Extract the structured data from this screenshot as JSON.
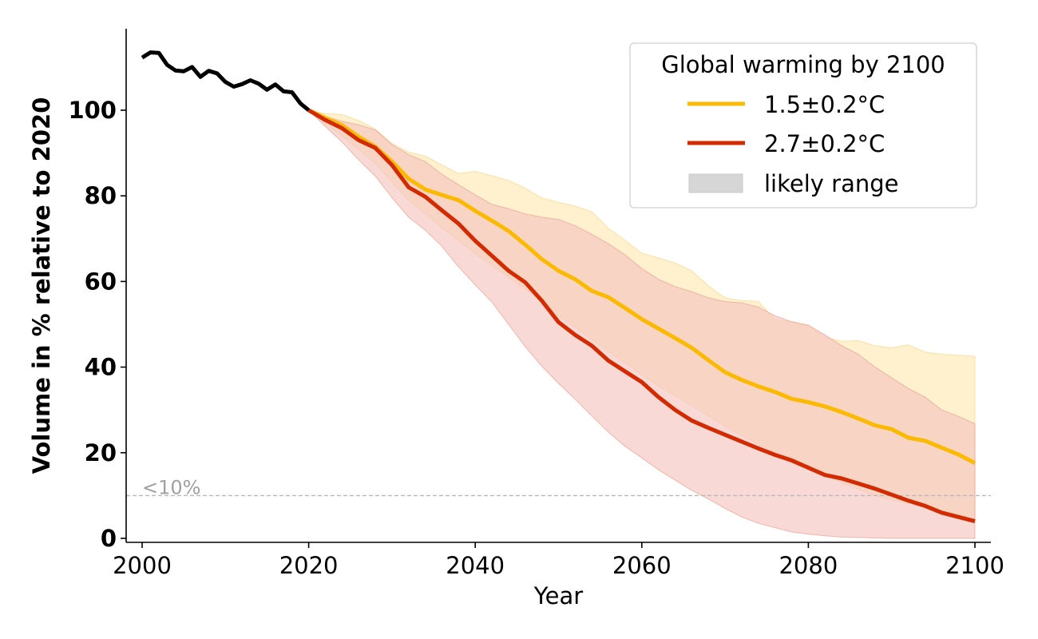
{
  "chart_data": {
    "type": "line",
    "title": "",
    "xlabel": "Year",
    "ylabel": "Volume in % relative to 2020",
    "xlim": [
      1998.5,
      2102
    ],
    "ylim": [
      -1,
      119
    ],
    "xticks": [
      2000,
      2020,
      2040,
      2060,
      2080,
      2100
    ],
    "yticks": [
      0,
      20,
      40,
      60,
      80,
      100
    ],
    "grid": false,
    "legend": {
      "title": "Global warming by 2100",
      "placement": "top-right",
      "entries": [
        {
          "label": "1.5±0.2°C",
          "kind": "line",
          "color": "#fbb900"
        },
        {
          "label": "2.7±0.2°C",
          "kind": "line",
          "color": "#d42a00"
        },
        {
          "label": "likely range",
          "kind": "patch",
          "color": "#d6d6d6"
        }
      ]
    },
    "annotations": [
      {
        "text": "<10%",
        "y": 10,
        "style": "dashed-horizontal-line",
        "color": "#b0b0b0"
      }
    ],
    "historical": {
      "name": "observed",
      "color": "#000000",
      "x": [
        2000,
        2001,
        2002,
        2003,
        2004,
        2005,
        2006,
        2007,
        2008,
        2009,
        2010,
        2011,
        2012,
        2013,
        2014,
        2015,
        2016,
        2017,
        2018,
        2019,
        2020
      ],
      "y": [
        112.3,
        113.5,
        113.4,
        110.6,
        109.3,
        109.1,
        110.1,
        107.8,
        109.2,
        108.6,
        106.6,
        105.5,
        106.1,
        107.0,
        106.2,
        104.8,
        106.0,
        104.4,
        104.2,
        101.6,
        100
      ]
    },
    "series": [
      {
        "name": "1.5±0.2°C",
        "color": "#fbb900",
        "band_color": "#ffe5a6",
        "x": [
          2020,
          2022,
          2024,
          2026,
          2028,
          2030,
          2032,
          2034,
          2036,
          2038,
          2040,
          2042,
          2044,
          2046,
          2048,
          2050,
          2052,
          2054,
          2056,
          2058,
          2060,
          2062,
          2064,
          2066,
          2068,
          2070,
          2072,
          2074,
          2076,
          2078,
          2080,
          2082,
          2084,
          2086,
          2088,
          2090,
          2092,
          2094,
          2096,
          2098,
          2100
        ],
        "y": [
          100,
          98.2,
          96.5,
          93.8,
          91.5,
          88.0,
          84.0,
          81.5,
          80.2,
          79.0,
          76.5,
          74.2,
          71.8,
          68.6,
          65.2,
          62.5,
          60.5,
          57.8,
          56.3,
          53.8,
          51.2,
          49.0,
          46.8,
          44.5,
          41.6,
          38.8,
          37.0,
          35.5,
          34.2,
          32.6,
          31.8,
          30.8,
          29.5,
          28.0,
          26.4,
          25.5,
          23.5,
          22.8,
          21.2,
          19.6,
          17.6
        ],
        "lower": [
          100,
          97.0,
          94.0,
          90.8,
          87.6,
          83.2,
          79.0,
          75.8,
          72.5,
          69.6,
          66.5,
          63.8,
          61.0,
          58.3,
          55.1,
          52.0,
          49.3,
          46.5,
          43.6,
          41.0,
          38.2,
          35.6,
          33.3,
          31.0,
          28.6,
          26.2,
          24.0,
          22.0,
          20.0,
          18.2,
          16.4,
          14.8,
          13.0,
          11.5,
          10.0,
          9.0,
          8.2,
          7.2,
          6.2,
          5.5,
          4.5
        ],
        "upper": [
          100,
          99.2,
          99.0,
          97.6,
          95.6,
          92.2,
          90.2,
          89.3,
          87.2,
          85.2,
          85.7,
          84.7,
          83.6,
          81.8,
          79.5,
          78.5,
          77.6,
          76.3,
          72.4,
          69.6,
          66.6,
          65.5,
          64.3,
          62.5,
          59.0,
          56.2,
          55.5,
          55.4,
          51.0,
          50.6,
          49.6,
          47.0,
          46.0,
          46.2,
          45.0,
          44.5,
          45.2,
          43.5,
          43.0,
          42.8,
          42.5
        ]
      },
      {
        "name": "2.7±0.2°C",
        "color": "#d42a00",
        "band_color": "#f4c4c0",
        "x": [
          2020,
          2022,
          2024,
          2026,
          2028,
          2030,
          2032,
          2034,
          2036,
          2038,
          2040,
          2042,
          2044,
          2046,
          2048,
          2050,
          2052,
          2054,
          2056,
          2058,
          2060,
          2062,
          2064,
          2066,
          2068,
          2070,
          2072,
          2074,
          2076,
          2078,
          2080,
          2082,
          2084,
          2086,
          2088,
          2090,
          2092,
          2094,
          2096,
          2098,
          2100
        ],
        "y": [
          100,
          97.7,
          95.8,
          93.0,
          91.2,
          87.2,
          82.0,
          79.8,
          76.6,
          73.5,
          69.5,
          66.0,
          62.5,
          59.8,
          55.5,
          50.5,
          47.5,
          45.0,
          41.5,
          39.0,
          36.5,
          33.0,
          30.0,
          27.5,
          25.8,
          24.2,
          22.6,
          21.0,
          19.5,
          18.2,
          16.5,
          14.8,
          14.0,
          12.8,
          11.6,
          10.2,
          8.8,
          7.6,
          6.0,
          5.0,
          4.0
        ],
        "lower": [
          100,
          96.2,
          92.6,
          88.4,
          84.6,
          79.6,
          75.0,
          72.0,
          68.2,
          63.4,
          59.2,
          55.2,
          50.0,
          44.8,
          40.2,
          36.2,
          32.5,
          28.6,
          24.8,
          21.5,
          18.8,
          16.0,
          13.6,
          11.2,
          9.2,
          7.0,
          5.0,
          3.5,
          2.5,
          1.5,
          1.0,
          0.6,
          0.3,
          0.2,
          0.1,
          0,
          0,
          0,
          0,
          0,
          0
        ],
        "upper": [
          100,
          98.5,
          97.4,
          96.6,
          95.4,
          92.0,
          89.6,
          88.0,
          85.0,
          82.6,
          80.2,
          78.0,
          77.0,
          75.8,
          75.0,
          74.5,
          73.0,
          71.0,
          68.8,
          66.2,
          63.0,
          60.5,
          58.8,
          57.6,
          56.2,
          55.3,
          55.0,
          54.0,
          52.0,
          50.6,
          49.8,
          47.5,
          45.0,
          43.0,
          40.0,
          37.5,
          35.0,
          33.0,
          30.0,
          28.5,
          26.8
        ]
      }
    ]
  }
}
